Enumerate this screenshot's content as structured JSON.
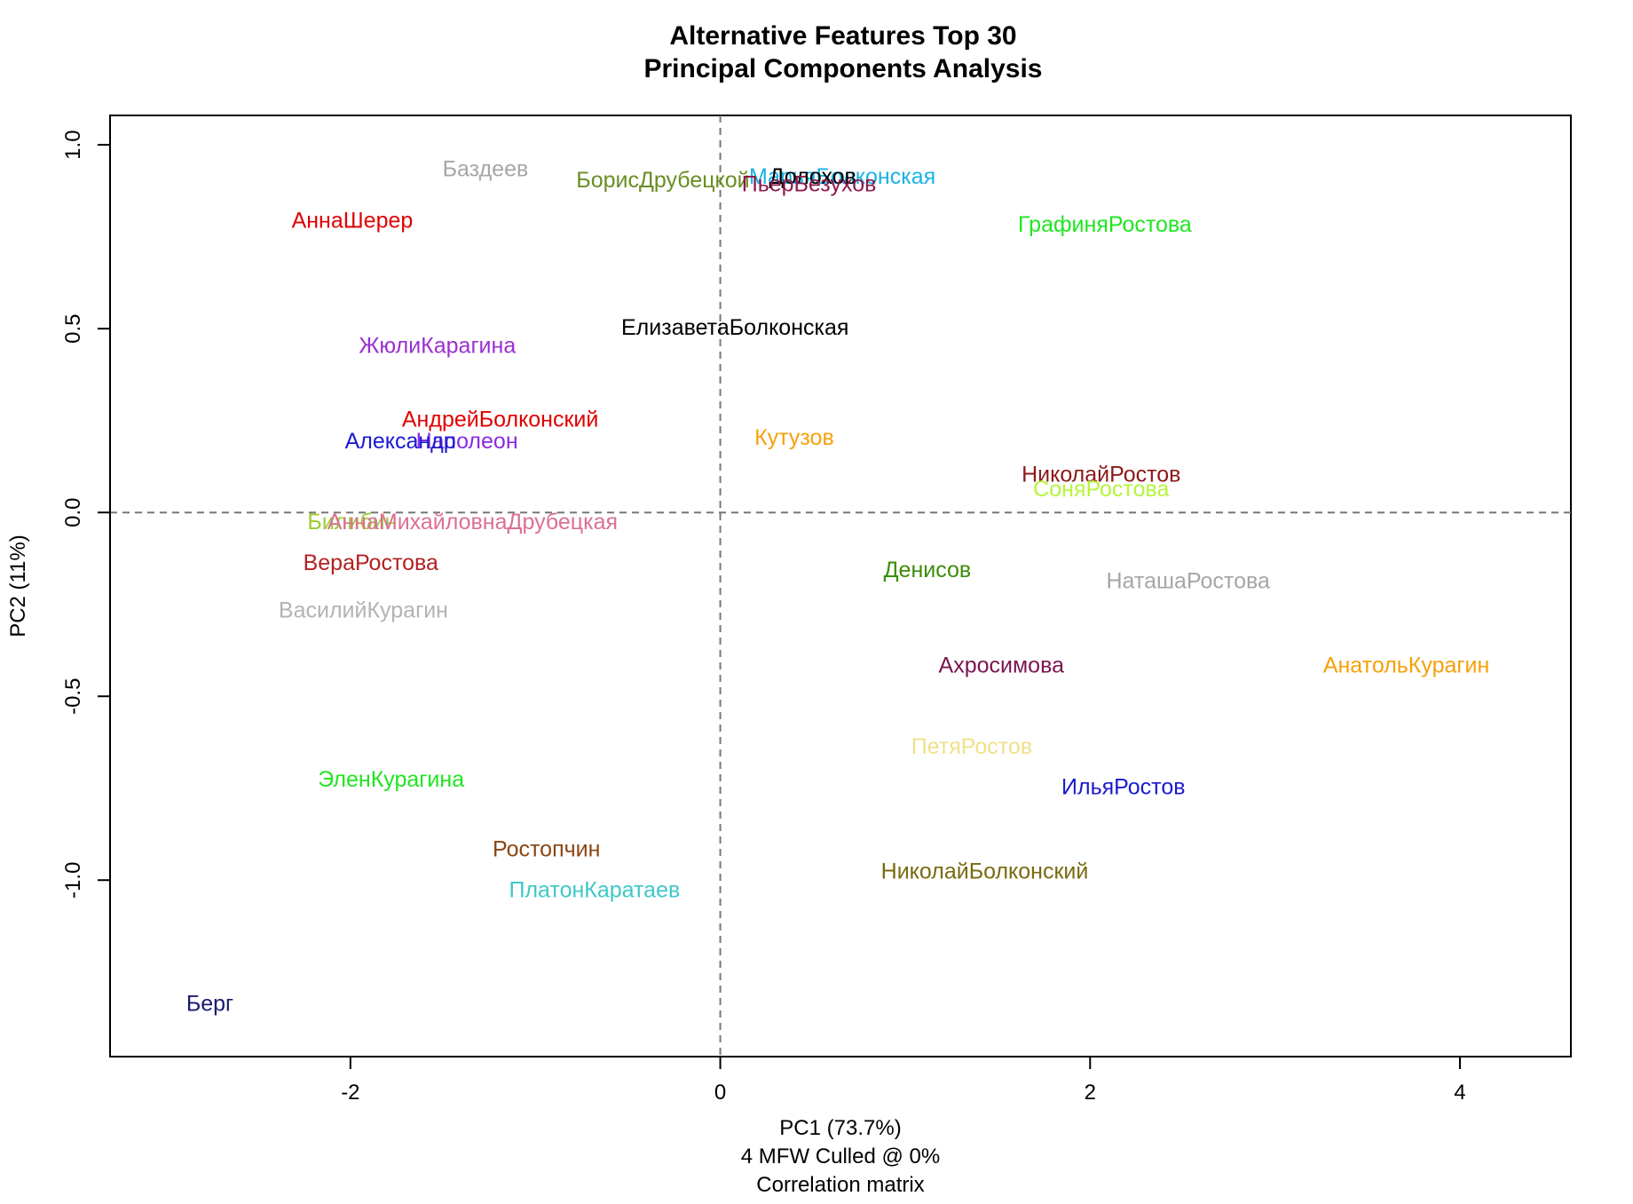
{
  "chart_data": {
    "type": "scatter",
    "title": [
      "Alternative Features Top 30",
      "Principal Components Analysis"
    ],
    "xlabel": [
      "PC1 (73.7%)",
      "4 MFW  Culled @ 0%",
      "Correlation matrix"
    ],
    "ylabel": "PC2 (11%)",
    "xlim": [
      -3.3,
      4.6
    ],
    "ylim": [
      -1.48,
      1.08
    ],
    "xticks": [
      -2,
      0,
      2,
      4
    ],
    "xtick_labels": [
      "-2",
      "0",
      "2",
      "4"
    ],
    "yticks": [
      -1.0,
      -0.5,
      0.0,
      0.5,
      1.0
    ],
    "ytick_labels": [
      "-1.0",
      "-0.5",
      "0.0",
      "0.5",
      "1.0"
    ],
    "reference_lines": {
      "x": 0,
      "y": 0,
      "style": "dashed",
      "color": "#777777"
    },
    "grid": false,
    "legend": "none",
    "points": [
      {
        "label": "Баздеев",
        "x": -1.27,
        "y": 0.93,
        "color": "#a6a6a6"
      },
      {
        "label": "БорисДрубецкой",
        "x": -0.31,
        "y": 0.9,
        "color": "#6b8e23"
      },
      {
        "label": "МарьяБолконская",
        "x": 0.66,
        "y": 0.91,
        "color": "#1ab2e6"
      },
      {
        "label": "Долохов",
        "x": 0.5,
        "y": 0.91,
        "color": "#000000"
      },
      {
        "label": "ПьерБезухов",
        "x": 0.48,
        "y": 0.89,
        "color": "#8b1a4a"
      },
      {
        "label": "АннаШерер",
        "x": -1.99,
        "y": 0.79,
        "color": "#e00000"
      },
      {
        "label": "ГрафиняРостова",
        "x": 2.08,
        "y": 0.78,
        "color": "#1fe61f"
      },
      {
        "label": "ЕлизаветаБолконская",
        "x": 0.08,
        "y": 0.5,
        "color": "#000000"
      },
      {
        "label": "ЖюлиКарагина",
        "x": -1.53,
        "y": 0.45,
        "color": "#9b30d0"
      },
      {
        "label": "АндрейБолконский",
        "x": -1.19,
        "y": 0.25,
        "color": "#e00000"
      },
      {
        "label": "Наполеон",
        "x": -1.37,
        "y": 0.19,
        "color": "#8a2be2"
      },
      {
        "label": "Александр",
        "x": -1.73,
        "y": 0.19,
        "color": "#1a1ad0"
      },
      {
        "label": "Кутузов",
        "x": 0.4,
        "y": 0.2,
        "color": "#f5a10a"
      },
      {
        "label": "НиколайРостов",
        "x": 2.06,
        "y": 0.1,
        "color": "#8b1a1a"
      },
      {
        "label": "СоняРостова",
        "x": 2.06,
        "y": 0.06,
        "color": "#b5f53c"
      },
      {
        "label": "Билибин",
        "x": -1.99,
        "y": -0.03,
        "color": "#9acd32"
      },
      {
        "label": "АннаМихайловнаДрубецкая",
        "x": -1.34,
        "y": -0.03,
        "color": "#db7093"
      },
      {
        "label": "ВераРостова",
        "x": -1.89,
        "y": -0.14,
        "color": "#b22222"
      },
      {
        "label": "Денисов",
        "x": 1.12,
        "y": -0.16,
        "color": "#3c8c0a"
      },
      {
        "label": "НаташаРостова",
        "x": 2.53,
        "y": -0.19,
        "color": "#a6a6a6"
      },
      {
        "label": "ВасилийКурагин",
        "x": -1.93,
        "y": -0.27,
        "color": "#b3b3b3"
      },
      {
        "label": "Ахросимова",
        "x": 1.52,
        "y": -0.42,
        "color": "#7a1550"
      },
      {
        "label": "АнатольКурагин",
        "x": 3.71,
        "y": -0.42,
        "color": "#f5a10a"
      },
      {
        "label": "ПетяРостов",
        "x": 1.36,
        "y": -0.64,
        "color": "#f0e08c"
      },
      {
        "label": "ИльяРостов",
        "x": 2.18,
        "y": -0.75,
        "color": "#1a1ad0"
      },
      {
        "label": "ЭленКурагина",
        "x": -1.78,
        "y": -0.73,
        "color": "#1fe61f"
      },
      {
        "label": "Ростопчин",
        "x": -0.94,
        "y": -0.92,
        "color": "#8b4513"
      },
      {
        "label": "НиколайБолконский",
        "x": 1.43,
        "y": -0.98,
        "color": "#7a6a10"
      },
      {
        "label": "ПлатонКаратаев",
        "x": -0.68,
        "y": -1.03,
        "color": "#3ec8c8"
      },
      {
        "label": "Берг",
        "x": -2.76,
        "y": -1.34,
        "color": "#1a1a6e"
      }
    ]
  }
}
